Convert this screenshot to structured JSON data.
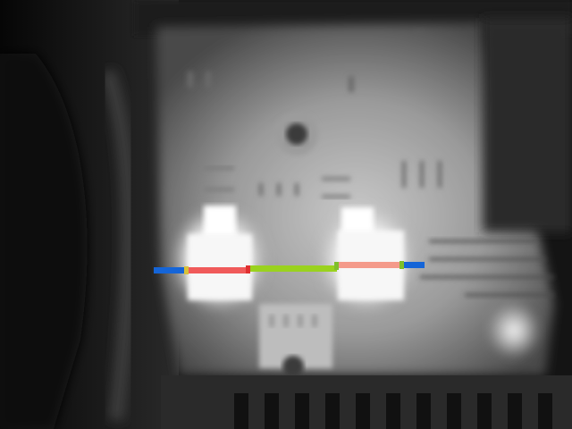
{
  "image": {
    "kind": "thermal-grayscale-camera-frame",
    "palette": {
      "background": "#121212",
      "panel": "#8a8a8a",
      "hot": "#f4f4f4",
      "segment_left_blue": "#1565d8",
      "segment_red": "#f05a5a",
      "segment_green": "#9ad21e",
      "segment_right_blue": "#1565d8"
    },
    "measurement_line": {
      "segments": [
        "blue",
        "red",
        "green",
        "red",
        "blue"
      ]
    }
  }
}
